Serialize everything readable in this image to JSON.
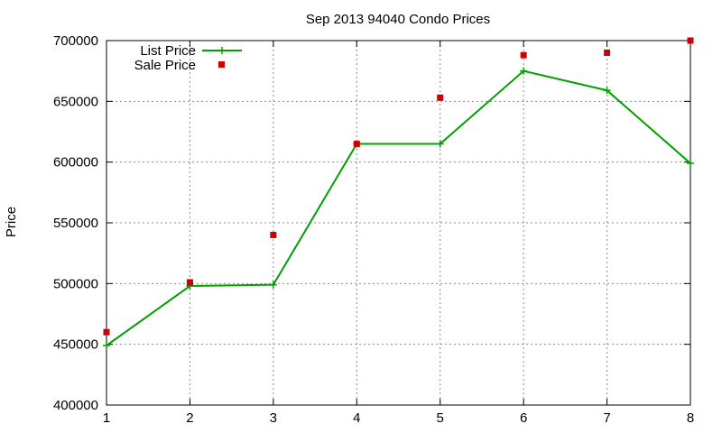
{
  "chart_data": {
    "type": "line",
    "title": "Sep 2013 94040 Condo Prices",
    "xlabel": "",
    "ylabel": "Price",
    "x": [
      1,
      2,
      3,
      4,
      5,
      6,
      7,
      8
    ],
    "xticks": [
      1,
      2,
      3,
      4,
      5,
      6,
      7,
      8
    ],
    "yticks": [
      400000,
      450000,
      500000,
      550000,
      600000,
      650000,
      700000
    ],
    "xlim": [
      1,
      8
    ],
    "ylim": [
      400000,
      700000
    ],
    "grid": true,
    "legend_position": "top-left",
    "series": [
      {
        "name": "List Price",
        "style": "line-with-plus-markers",
        "color": "#00a000",
        "values": [
          449000,
          498000,
          499000,
          615000,
          615000,
          675000,
          659000,
          599000
        ]
      },
      {
        "name": "Sale Price",
        "style": "square-markers",
        "color": "#cc0000",
        "values": [
          460000,
          501000,
          540000,
          615000,
          653000,
          688000,
          690000,
          700000
        ]
      }
    ]
  }
}
